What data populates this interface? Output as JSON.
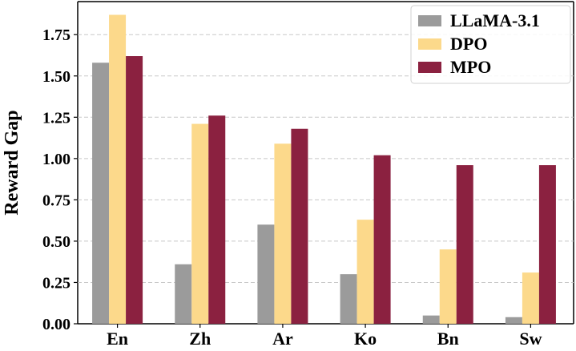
{
  "chart_data": {
    "type": "bar",
    "title": "",
    "xlabel": "",
    "ylabel": "Reward Gap",
    "categories": [
      "En",
      "Zh",
      "Ar",
      "Ko",
      "Bn",
      "Sw"
    ],
    "series": [
      {
        "name": "LLaMA-3.1",
        "color": "#9b9b9b",
        "values": [
          1.58,
          0.36,
          0.6,
          0.3,
          0.05,
          0.04
        ]
      },
      {
        "name": "DPO",
        "color": "#fcd98b",
        "values": [
          1.87,
          1.21,
          1.09,
          0.63,
          0.45,
          0.31
        ]
      },
      {
        "name": "MPO",
        "color": "#8b2140",
        "values": [
          1.62,
          1.26,
          1.18,
          1.02,
          0.96,
          0.96
        ]
      }
    ],
    "ylim": [
      0,
      1.95
    ],
    "yticks": [
      "0.00",
      "0.25",
      "0.50",
      "0.75",
      "1.00",
      "1.25",
      "1.50",
      "1.75"
    ],
    "grid": "y-dashed",
    "legend": "top-right"
  }
}
